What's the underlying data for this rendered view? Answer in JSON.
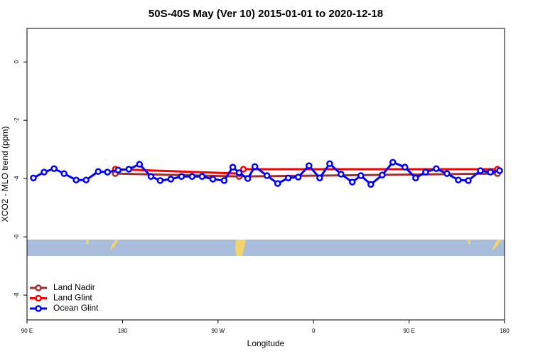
{
  "chart_data": {
    "type": "line",
    "title": "50S-40S May (Ver 10)   2015-01-01 to 2020-12-18",
    "x_label": "Longitude",
    "y_label": "XCO2 - MLO trend (ppm)",
    "xlim": [
      90,
      540
    ],
    "ylim": [
      -8.85,
      1.15
    ],
    "xticks": [
      {
        "value": 90,
        "label": "90 E"
      },
      180,
      {
        "value": 270,
        "label": "90 W"
      },
      {
        "value": 360,
        "label": "0"
      },
      {
        "value": 450,
        "label": "90 E"
      },
      {
        "value": 540,
        "label": "180"
      }
    ],
    "yticks": [
      -8,
      -6,
      -4,
      -2,
      0
    ],
    "legend": "bottomleft",
    "series": [
      {
        "name": "Land Nadir",
        "color": "#a03030",
        "x": [
          173.2,
          289.9,
          533.3
        ],
        "values": [
          -3.83,
          -3.93,
          -3.83
        ]
      },
      {
        "name": "Land Glint",
        "color": "#ff0000",
        "x": [
          173.2,
          289.9,
          293.9,
          533.3
        ],
        "values": [
          -3.68,
          -3.83,
          -3.68,
          -3.68
        ]
      },
      {
        "name": "Ocean Glint",
        "color": "#0000ff",
        "x": [
          96.0,
          106.1,
          115.5,
          124.9,
          136.3,
          145.7,
          157.1,
          165.8,
          175.9,
          186.0,
          196.0,
          206.8,
          215.5,
          225.5,
          235.6,
          245.6,
          255.0,
          265.1,
          275.8,
          283.9,
          289.9,
          298.0,
          304.7,
          316.1,
          326.2,
          336.2,
          345.6,
          355.7,
          365.8,
          375.2,
          385.9,
          396.5,
          404.6,
          414.0,
          424.7,
          434.7,
          446.1,
          456.2,
          465.6,
          475.6,
          485.7,
          496.4,
          505.8,
          517.2,
          526.6,
          535.3
        ],
        "values": [
          -3.98,
          -3.78,
          -3.66,
          -3.83,
          -4.05,
          -4.05,
          -3.76,
          -3.78,
          -3.71,
          -3.68,
          -3.51,
          -3.93,
          -4.07,
          -4.02,
          -3.93,
          -3.93,
          -3.93,
          -4.02,
          -4.07,
          -3.61,
          -3.8,
          -4.0,
          -3.59,
          -3.9,
          -4.17,
          -3.98,
          -3.95,
          -3.56,
          -3.98,
          -3.49,
          -3.85,
          -4.12,
          -3.9,
          -4.2,
          -3.88,
          -3.44,
          -3.61,
          -3.98,
          -3.78,
          -3.66,
          -3.83,
          -4.05,
          -4.07,
          -3.73,
          -3.78,
          -3.73
        ]
      }
    ]
  }
}
